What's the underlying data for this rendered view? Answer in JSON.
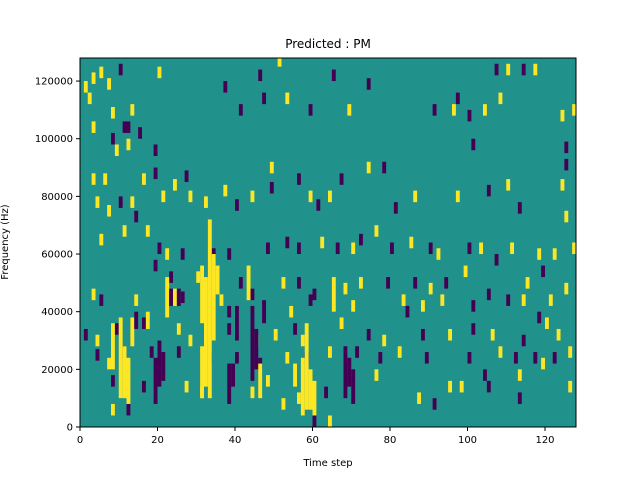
{
  "chart_data": {
    "type": "heatmap",
    "title": "Predicted : PM",
    "xlabel": "Time step",
    "ylabel": "Frequency (Hz)",
    "xlim": [
      0,
      128
    ],
    "ylim": [
      0,
      128000
    ],
    "x_ticks": [
      0,
      20,
      40,
      60,
      80,
      100,
      120
    ],
    "y_ticks": [
      0,
      20000,
      40000,
      60000,
      80000,
      100000,
      120000
    ],
    "grid": false,
    "colormap": "viridis",
    "value_levels": [
      -1,
      0,
      1
    ],
    "background_value": 0,
    "colors": {
      "low": "#440154",
      "mid": "#21918c",
      "high": "#fde725"
    },
    "cells": [
      {
        "t": 1,
        "f": 118000,
        "v": 1
      },
      {
        "t": 2,
        "f": 114000,
        "v": 1
      },
      {
        "t": 3,
        "f": 121000,
        "v": 1
      },
      {
        "t": 5,
        "f": 123000,
        "v": 1
      },
      {
        "t": 7,
        "f": 119000,
        "v": 1
      },
      {
        "t": 8,
        "f": 109000,
        "v": 1
      },
      {
        "t": 10,
        "f": 124000,
        "v": -1
      },
      {
        "t": 12,
        "f": 104000,
        "v": -1
      },
      {
        "t": 13,
        "f": 110000,
        "v": 1
      },
      {
        "t": 20,
        "f": 123000,
        "v": 1
      },
      {
        "t": 37,
        "f": 118000,
        "v": -1
      },
      {
        "t": 41,
        "f": 110000,
        "v": -1
      },
      {
        "t": 46,
        "f": 122000,
        "v": -1
      },
      {
        "t": 47,
        "f": 114000,
        "v": -1
      },
      {
        "t": 51,
        "f": 127000,
        "v": 1
      },
      {
        "t": 53,
        "f": 114000,
        "v": 1
      },
      {
        "t": 59,
        "f": 110000,
        "v": -1
      },
      {
        "t": 65,
        "f": 122000,
        "v": -1
      },
      {
        "t": 69,
        "f": 110000,
        "v": 1
      },
      {
        "t": 74,
        "f": 119000,
        "v": -1
      },
      {
        "t": 91,
        "f": 110000,
        "v": -1
      },
      {
        "t": 96,
        "f": 110000,
        "v": 1
      },
      {
        "t": 97,
        "f": 114000,
        "v": -1
      },
      {
        "t": 100,
        "f": 108000,
        "v": -1
      },
      {
        "t": 104,
        "f": 110000,
        "v": 1
      },
      {
        "t": 107,
        "f": 124000,
        "v": -1
      },
      {
        "t": 108,
        "f": 114000,
        "v": 1
      },
      {
        "t": 110,
        "f": 124000,
        "v": 1
      },
      {
        "t": 114,
        "f": 124000,
        "v": -1
      },
      {
        "t": 117,
        "f": 124000,
        "v": 1
      },
      {
        "t": 124,
        "f": 108000,
        "v": 1
      },
      {
        "t": 127,
        "f": 110000,
        "v": 1
      },
      {
        "t": 3,
        "f": 104000,
        "v": 1
      },
      {
        "t": 8,
        "f": 100000,
        "v": -1
      },
      {
        "t": 9,
        "f": 96000,
        "v": 1
      },
      {
        "t": 11,
        "f": 104000,
        "v": -1
      },
      {
        "t": 12,
        "f": 98000,
        "v": 1
      },
      {
        "t": 15,
        "f": 102000,
        "v": -1
      },
      {
        "t": 19,
        "f": 96000,
        "v": -1
      },
      {
        "t": 101,
        "f": 98000,
        "v": -1
      },
      {
        "t": 125,
        "f": 97000,
        "v": -1
      },
      {
        "t": 3,
        "f": 86000,
        "v": 1
      },
      {
        "t": 6,
        "f": 86000,
        "v": 1
      },
      {
        "t": 4,
        "f": 78000,
        "v": 1
      },
      {
        "t": 7,
        "f": 75000,
        "v": 1
      },
      {
        "t": 10,
        "f": 78000,
        "v": -1
      },
      {
        "t": 13,
        "f": 78000,
        "v": 1
      },
      {
        "t": 16,
        "f": 86000,
        "v": 1
      },
      {
        "t": 14,
        "f": 73000,
        "v": -1
      },
      {
        "t": 19,
        "f": 88000,
        "v": -1
      },
      {
        "t": 21,
        "f": 80000,
        "v": 1
      },
      {
        "t": 24,
        "f": 84000,
        "v": 1
      },
      {
        "t": 27,
        "f": 87000,
        "v": -1
      },
      {
        "t": 28,
        "f": 80000,
        "v": 1
      },
      {
        "t": 32,
        "f": 78000,
        "v": 1
      },
      {
        "t": 37,
        "f": 82000,
        "v": 1
      },
      {
        "t": 40,
        "f": 77000,
        "v": -1
      },
      {
        "t": 44,
        "f": 80000,
        "v": 1
      },
      {
        "t": 49,
        "f": 90000,
        "v": 1
      },
      {
        "t": 49,
        "f": 83000,
        "v": -1
      },
      {
        "t": 56,
        "f": 86000,
        "v": -1
      },
      {
        "t": 59,
        "f": 80000,
        "v": 1
      },
      {
        "t": 61,
        "f": 77000,
        "v": -1
      },
      {
        "t": 64,
        "f": 80000,
        "v": 1
      },
      {
        "t": 67,
        "f": 86000,
        "v": -1
      },
      {
        "t": 74,
        "f": 90000,
        "v": 1
      },
      {
        "t": 78,
        "f": 90000,
        "v": -1
      },
      {
        "t": 81,
        "f": 76000,
        "v": -1
      },
      {
        "t": 86,
        "f": 80000,
        "v": 1
      },
      {
        "t": 97,
        "f": 80000,
        "v": 1
      },
      {
        "t": 105,
        "f": 82000,
        "v": -1
      },
      {
        "t": 110,
        "f": 84000,
        "v": 1
      },
      {
        "t": 113,
        "f": 76000,
        "v": -1
      },
      {
        "t": 124,
        "f": 84000,
        "v": 1
      },
      {
        "t": 125,
        "f": 91000,
        "v": -1
      },
      {
        "t": 125,
        "f": 73000,
        "v": 1
      },
      {
        "t": 5,
        "f": 65000,
        "v": 1
      },
      {
        "t": 11,
        "f": 68000,
        "v": 1
      },
      {
        "t": 17,
        "f": 68000,
        "v": 1
      },
      {
        "t": 20,
        "f": 62000,
        "v": -1
      },
      {
        "t": 22,
        "f": 60000,
        "v": 1
      },
      {
        "t": 26,
        "f": 60000,
        "v": -1
      },
      {
        "t": 34,
        "f": 60000,
        "v": -1
      },
      {
        "t": 38,
        "f": 60000,
        "v": -1
      },
      {
        "t": 48,
        "f": 62000,
        "v": -1
      },
      {
        "t": 53,
        "f": 64000,
        "v": -1
      },
      {
        "t": 56,
        "f": 62000,
        "v": -1
      },
      {
        "t": 62,
        "f": 64000,
        "v": 1
      },
      {
        "t": 66,
        "f": 62000,
        "v": -1
      },
      {
        "t": 70,
        "f": 62000,
        "v": 1
      },
      {
        "t": 72,
        "f": 65000,
        "v": -1
      },
      {
        "t": 76,
        "f": 68000,
        "v": 1
      },
      {
        "t": 80,
        "f": 62000,
        "v": -1
      },
      {
        "t": 85,
        "f": 64000,
        "v": 1
      },
      {
        "t": 90,
        "f": 62000,
        "v": -1
      },
      {
        "t": 92,
        "f": 60000,
        "v": 1
      },
      {
        "t": 100,
        "f": 62000,
        "v": -1
      },
      {
        "t": 103,
        "f": 62000,
        "v": 1
      },
      {
        "t": 107,
        "f": 58000,
        "v": -1
      },
      {
        "t": 111,
        "f": 62000,
        "v": 1
      },
      {
        "t": 118,
        "f": 60000,
        "v": 1
      },
      {
        "t": 122,
        "f": 60000,
        "v": 1
      },
      {
        "t": 127,
        "f": 62000,
        "v": 1
      },
      {
        "t": 19,
        "f": 56000,
        "v": -1
      },
      {
        "t": 23,
        "f": 52000,
        "v": -1
      },
      {
        "t": 30,
        "f": 52000,
        "v": 1
      },
      {
        "t": 41,
        "f": 50000,
        "v": -1
      },
      {
        "t": 44,
        "f": 46000,
        "v": -1
      },
      {
        "t": 52,
        "f": 50000,
        "v": 1
      },
      {
        "t": 56,
        "f": 50000,
        "v": -1
      },
      {
        "t": 60,
        "f": 46000,
        "v": -1
      },
      {
        "t": 68,
        "f": 48000,
        "v": 1
      },
      {
        "t": 72,
        "f": 50000,
        "v": 1
      },
      {
        "t": 79,
        "f": 50000,
        "v": -1
      },
      {
        "t": 83,
        "f": 44000,
        "v": 1
      },
      {
        "t": 86,
        "f": 50000,
        "v": -1
      },
      {
        "t": 90,
        "f": 48000,
        "v": 1
      },
      {
        "t": 94,
        "f": 50000,
        "v": -1
      },
      {
        "t": 99,
        "f": 54000,
        "v": 1
      },
      {
        "t": 105,
        "f": 46000,
        "v": -1
      },
      {
        "t": 115,
        "f": 50000,
        "v": 1
      },
      {
        "t": 119,
        "f": 54000,
        "v": -1
      },
      {
        "t": 121,
        "f": 44000,
        "v": 1
      },
      {
        "t": 125,
        "f": 48000,
        "v": 1
      },
      {
        "t": 3,
        "f": 46000,
        "v": 1
      },
      {
        "t": 5,
        "f": 44000,
        "v": -1
      },
      {
        "t": 14,
        "f": 44000,
        "v": 1
      },
      {
        "t": 26,
        "f": 45000,
        "v": -1
      },
      {
        "t": 36,
        "f": 44000,
        "v": 1
      },
      {
        "t": 38,
        "f": 40000,
        "v": -1
      },
      {
        "t": 54,
        "f": 40000,
        "v": 1
      },
      {
        "t": 59,
        "f": 44000,
        "v": -1
      },
      {
        "t": 70,
        "f": 42000,
        "v": 1
      },
      {
        "t": 84,
        "f": 40000,
        "v": -1
      },
      {
        "t": 88,
        "f": 42000,
        "v": 1
      },
      {
        "t": 93,
        "f": 44000,
        "v": 1
      },
      {
        "t": 101,
        "f": 42000,
        "v": -1
      },
      {
        "t": 110,
        "f": 44000,
        "v": -1
      },
      {
        "t": 114,
        "f": 44000,
        "v": 1
      },
      {
        "t": 118,
        "f": 38000,
        "v": -1
      },
      {
        "t": 120,
        "f": 36000,
        "v": 1
      },
      {
        "t": 1,
        "f": 32000,
        "v": -1
      },
      {
        "t": 4,
        "f": 30000,
        "v": 1
      },
      {
        "t": 9,
        "f": 34000,
        "v": -1
      },
      {
        "t": 16,
        "f": 36000,
        "v": -1
      },
      {
        "t": 25,
        "f": 34000,
        "v": 1
      },
      {
        "t": 28,
        "f": 30000,
        "v": 1
      },
      {
        "t": 38,
        "f": 34000,
        "v": -1
      },
      {
        "t": 45,
        "f": 30000,
        "v": 1
      },
      {
        "t": 50,
        "f": 32000,
        "v": 1
      },
      {
        "t": 55,
        "f": 34000,
        "v": -1
      },
      {
        "t": 57,
        "f": 30000,
        "v": 1
      },
      {
        "t": 67,
        "f": 36000,
        "v": 1
      },
      {
        "t": 74,
        "f": 32000,
        "v": -1
      },
      {
        "t": 78,
        "f": 30000,
        "v": 1
      },
      {
        "t": 88,
        "f": 32000,
        "v": -1
      },
      {
        "t": 95,
        "f": 32000,
        "v": 1
      },
      {
        "t": 101,
        "f": 34000,
        "v": -1
      },
      {
        "t": 106,
        "f": 32000,
        "v": 1
      },
      {
        "t": 114,
        "f": 30000,
        "v": -1
      },
      {
        "t": 123,
        "f": 32000,
        "v": 1
      },
      {
        "t": 4,
        "f": 25000,
        "v": -1
      },
      {
        "t": 7,
        "f": 22000,
        "v": 1
      },
      {
        "t": 11,
        "f": 26000,
        "v": -1
      },
      {
        "t": 18,
        "f": 26000,
        "v": -1
      },
      {
        "t": 25,
        "f": 26000,
        "v": -1
      },
      {
        "t": 33,
        "f": 24000,
        "v": -1
      },
      {
        "t": 40,
        "f": 24000,
        "v": -1
      },
      {
        "t": 46,
        "f": 22000,
        "v": -1
      },
      {
        "t": 53,
        "f": 24000,
        "v": 1
      },
      {
        "t": 58,
        "f": 24000,
        "v": -1
      },
      {
        "t": 64,
        "f": 26000,
        "v": 1
      },
      {
        "t": 71,
        "f": 26000,
        "v": -1
      },
      {
        "t": 77,
        "f": 24000,
        "v": -1
      },
      {
        "t": 82,
        "f": 26000,
        "v": 1
      },
      {
        "t": 89,
        "f": 24000,
        "v": -1
      },
      {
        "t": 100,
        "f": 24000,
        "v": -1
      },
      {
        "t": 108,
        "f": 26000,
        "v": 1
      },
      {
        "t": 112,
        "f": 24000,
        "v": -1
      },
      {
        "t": 117,
        "f": 24000,
        "v": -1
      },
      {
        "t": 119,
        "f": 22000,
        "v": 1
      },
      {
        "t": 122,
        "f": 24000,
        "v": -1
      },
      {
        "t": 126,
        "f": 26000,
        "v": 1
      },
      {
        "t": 8,
        "f": 16000,
        "v": -1
      },
      {
        "t": 16,
        "f": 14000,
        "v": -1
      },
      {
        "t": 27,
        "f": 14000,
        "v": 1
      },
      {
        "t": 31,
        "f": 12000,
        "v": 1
      },
      {
        "t": 44,
        "f": 12000,
        "v": 1
      },
      {
        "t": 48,
        "f": 16000,
        "v": 1
      },
      {
        "t": 52,
        "f": 8000,
        "v": 1
      },
      {
        "t": 56,
        "f": 10000,
        "v": 1
      },
      {
        "t": 63,
        "f": 12000,
        "v": -1
      },
      {
        "t": 76,
        "f": 18000,
        "v": 1
      },
      {
        "t": 87,
        "f": 10000,
        "v": 1
      },
      {
        "t": 91,
        "f": 8000,
        "v": -1
      },
      {
        "t": 95,
        "f": 14000,
        "v": 1
      },
      {
        "t": 98,
        "f": 14000,
        "v": 1
      },
      {
        "t": 104,
        "f": 18000,
        "v": -1
      },
      {
        "t": 105,
        "f": 14000,
        "v": -1
      },
      {
        "t": 113,
        "f": 18000,
        "v": 1
      },
      {
        "t": 113,
        "f": 10000,
        "v": -1
      },
      {
        "t": 126,
        "f": 14000,
        "v": 1
      },
      {
        "t": 8,
        "f": 6000,
        "v": 1
      },
      {
        "t": 12,
        "f": 6000,
        "v": -1
      },
      {
        "t": 60,
        "f": 2000,
        "v": -1
      },
      {
        "t": 64,
        "f": 2000,
        "v": 1
      }
    ],
    "bands": [
      {
        "t": 8,
        "f0": 20000,
        "f1": 36000,
        "v": 1
      },
      {
        "t": 10,
        "f0": 10000,
        "f1": 38000,
        "v": 1
      },
      {
        "t": 11,
        "f0": 10000,
        "f1": 28000,
        "v": 1
      },
      {
        "t": 12,
        "f0": 8000,
        "f1": 24000,
        "v": 1
      },
      {
        "t": 13,
        "f0": 28000,
        "f1": 38000,
        "v": 1
      },
      {
        "t": 14,
        "f0": 34000,
        "f1": 40000,
        "v": -1
      },
      {
        "t": 17,
        "f0": 34000,
        "f1": 40000,
        "v": 1
      },
      {
        "t": 19,
        "f0": 8000,
        "f1": 24000,
        "v": -1
      },
      {
        "t": 20,
        "f0": 14000,
        "f1": 30000,
        "v": -1
      },
      {
        "t": 21,
        "f0": 16000,
        "f1": 26000,
        "v": -1
      },
      {
        "t": 22,
        "f0": 38000,
        "f1": 52000,
        "v": 1
      },
      {
        "t": 23,
        "f0": 42000,
        "f1": 48000,
        "v": -1
      },
      {
        "t": 24,
        "f0": 42000,
        "f1": 48000,
        "v": 1
      },
      {
        "t": 25,
        "f0": 42000,
        "f1": 48000,
        "v": -1
      },
      {
        "t": 31,
        "f0": 10000,
        "f1": 28000,
        "v": 1
      },
      {
        "t": 31,
        "f0": 36000,
        "f1": 56000,
        "v": 1
      },
      {
        "t": 32,
        "f0": 14000,
        "f1": 52000,
        "v": 1
      },
      {
        "t": 33,
        "f0": 10000,
        "f1": 72000,
        "v": 1
      },
      {
        "t": 34,
        "f0": 30000,
        "f1": 60000,
        "v": 1
      },
      {
        "t": 35,
        "f0": 46000,
        "f1": 56000,
        "v": 1
      },
      {
        "t": 38,
        "f0": 8000,
        "f1": 22000,
        "v": -1
      },
      {
        "t": 39,
        "f0": 14000,
        "f1": 22000,
        "v": -1
      },
      {
        "t": 40,
        "f0": 30000,
        "f1": 42000,
        "v": -1
      },
      {
        "t": 43,
        "f0": 44000,
        "f1": 56000,
        "v": 1
      },
      {
        "t": 44,
        "f0": 16000,
        "f1": 42000,
        "v": -1
      },
      {
        "t": 45,
        "f0": 20000,
        "f1": 34000,
        "v": -1
      },
      {
        "t": 46,
        "f0": 10000,
        "f1": 22000,
        "v": 1
      },
      {
        "t": 47,
        "f0": 36000,
        "f1": 44000,
        "v": -1
      },
      {
        "t": 55,
        "f0": 14000,
        "f1": 22000,
        "v": 1
      },
      {
        "t": 57,
        "f0": 4000,
        "f1": 24000,
        "v": 1
      },
      {
        "t": 58,
        "f0": 6000,
        "f1": 36000,
        "v": 1
      },
      {
        "t": 59,
        "f0": 6000,
        "f1": 20000,
        "v": 1
      },
      {
        "t": 60,
        "f0": 4000,
        "f1": 16000,
        "v": 1
      },
      {
        "t": 65,
        "f0": 40000,
        "f1": 52000,
        "v": 1
      },
      {
        "t": 68,
        "f0": 10000,
        "f1": 28000,
        "v": -1
      },
      {
        "t": 69,
        "f0": 14000,
        "f1": 24000,
        "v": -1
      },
      {
        "t": 70,
        "f0": 8000,
        "f1": 20000,
        "v": -1
      }
    ]
  }
}
